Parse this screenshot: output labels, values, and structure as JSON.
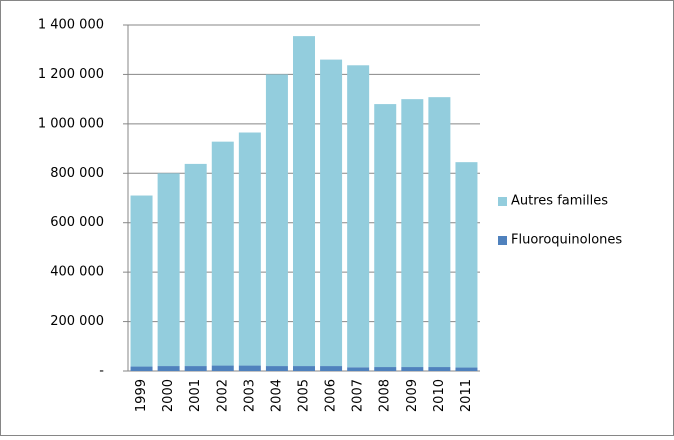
{
  "chart_data": {
    "type": "bar",
    "stacked": true,
    "categories": [
      "1999",
      "2000",
      "2001",
      "2002",
      "2003",
      "2004",
      "2005",
      "2006",
      "2007",
      "2008",
      "2009",
      "2010",
      "2011"
    ],
    "series": [
      {
        "name": "Fluoroquinolones",
        "color": "#4f81bd",
        "values": [
          18000,
          20000,
          20000,
          22000,
          22000,
          20000,
          20000,
          20000,
          15000,
          16000,
          16000,
          16000,
          14000
        ]
      },
      {
        "name": "Autres familles",
        "color": "#93cddd",
        "values": [
          692000,
          780000,
          818000,
          906000,
          943000,
          1180000,
          1335000,
          1240000,
          1222000,
          1064000,
          1084000,
          1092000,
          831000
        ]
      }
    ],
    "ylim": [
      0,
      1400000
    ],
    "yticks": [
      {
        "value": 0,
        "label": "-"
      },
      {
        "value": 200000,
        "label": "200 000"
      },
      {
        "value": 400000,
        "label": "400 000"
      },
      {
        "value": 600000,
        "label": "600 000"
      },
      {
        "value": 800000,
        "label": "800 000"
      },
      {
        "value": 1000000,
        "label": "1 000 000"
      },
      {
        "value": 1200000,
        "label": "1 200 000"
      },
      {
        "value": 1400000,
        "label": "1 400 000"
      }
    ],
    "grid": true,
    "legend": "right"
  }
}
